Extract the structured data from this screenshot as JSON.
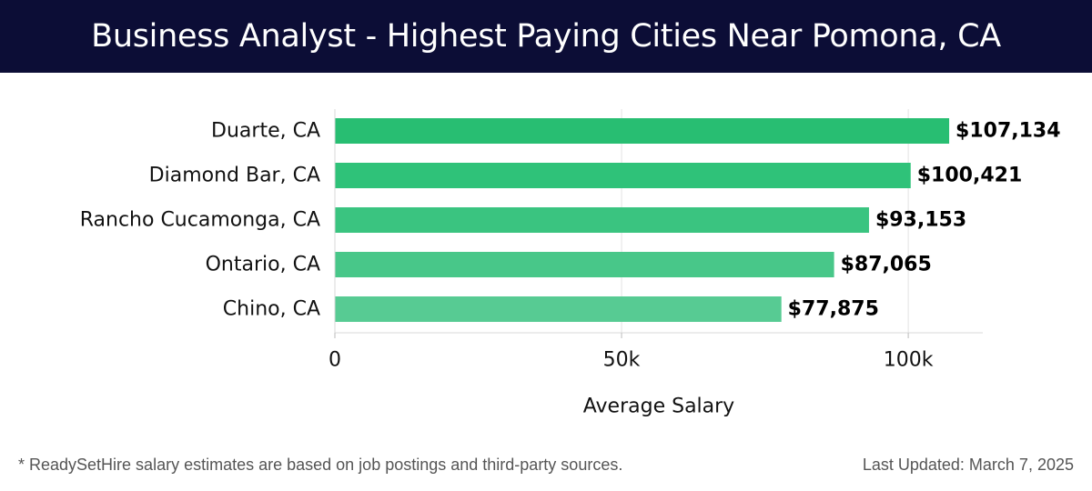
{
  "header": {
    "title": "Business Analyst - Highest Paying Cities Near Pomona, CA"
  },
  "chart_data": {
    "type": "bar",
    "orientation": "horizontal",
    "title": "Business Analyst - Highest Paying Cities Near Pomona, CA",
    "categories": [
      "Duarte, CA",
      "Diamond Bar, CA",
      "Rancho Cucamonga, CA",
      "Ontario, CA",
      "Chino, CA"
    ],
    "values": [
      107134,
      100421,
      93153,
      87065,
      77875
    ],
    "value_labels": [
      "$107,134",
      "$100,421",
      "$93,153",
      "$87,065",
      "$77,875"
    ],
    "xlabel": "Average Salary",
    "ylabel": "",
    "xlim": [
      0,
      113000
    ],
    "x_ticks": [
      0,
      50000,
      100000
    ],
    "x_tick_labels": [
      "0",
      "50k",
      "100k"
    ],
    "grid": "vertical",
    "colors": [
      "#28be72",
      "#2fc279",
      "#3ac480",
      "#48c789",
      "#57cb93"
    ]
  },
  "footer": {
    "note": "* ReadySetHire salary estimates are based on job postings and third-party sources.",
    "updated": "Last Updated: March 7, 2025"
  }
}
